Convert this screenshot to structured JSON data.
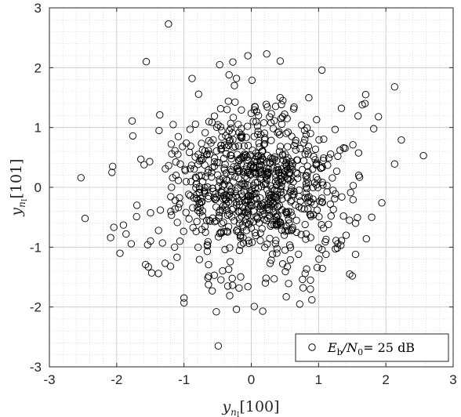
{
  "chart_data": {
    "type": "scatter",
    "title": "",
    "xlabel": {
      "main": "y",
      "sub": "n",
      "subsub": "I",
      "bracket": "[100]"
    },
    "ylabel": {
      "main": "y",
      "sub": "n",
      "subsub": "I",
      "bracket": "[101]"
    },
    "xlim": [
      -3,
      3
    ],
    "ylim": [
      -3,
      3
    ],
    "xticks": [
      "-3",
      "-2",
      "-1",
      "0",
      "1",
      "2",
      "3"
    ],
    "yticks": [
      "-3",
      "-2",
      "-1",
      "0",
      "1",
      "2",
      "3"
    ],
    "grid": true,
    "minor_grid": true,
    "legend_position": "bottom-right",
    "series": [
      {
        "name": "E_b/N_0= 25 dB",
        "legend": {
          "E": "E",
          "Esub": "b",
          "N": "/N",
          "Nsub": "0",
          "rest": "= 25 dB"
        },
        "marker": "circle-open",
        "color": "#000000",
        "x": [
          -1.23,
          -1.56,
          -0.47,
          0.23,
          -0.05,
          0.43,
          -0.33,
          -0.88,
          -0.22,
          0.01,
          -0.25,
          1.05,
          -1.77,
          -2.06,
          -2.07,
          -2.53,
          -1.37,
          -1.16,
          -1.36,
          -2.09,
          -2.47,
          -1.86,
          -1.57,
          -1.38,
          2.13,
          1.89,
          1.65,
          1.69,
          1.7,
          -1.48,
          -1.28,
          -1.2,
          -1.54,
          -1.32,
          -1.14,
          -1.06,
          -0.97,
          -0.85,
          -1.0,
          -1.0,
          -0.58,
          -0.55,
          -0.35,
          -0.05,
          0.28,
          0.38,
          0.58,
          0.72,
          0.77,
          0.8,
          0.98,
          1.11,
          1.25,
          1.5,
          1.79,
          -0.49,
          -0.22,
          -0.52,
          0.17,
          0.34,
          0.21,
          0.52,
          0.88,
          1.26,
          1.41,
          1.46,
          1.37,
          1.22,
          1.55,
          1.71,
          1.94,
          2.13,
          -1.09,
          -0.75,
          -0.45,
          -0.14,
          0.41,
          0.83,
          1.07,
          -0.34,
          0.47,
          0.63,
          -1.7,
          -1.9,
          -1.64,
          0.22,
          -0.32,
          0.9,
          1.55,
          -0.91,
          -0.63,
          0.03,
          0.52,
          0.66,
          0.97,
          1.34,
          1.82,
          -1.51,
          -1.76,
          -1.17,
          -0.81,
          -0.07,
          0.37,
          0.49,
          1.1,
          1.27
        ],
        "y": [
          2.73,
          2.1,
          2.05,
          2.23,
          2.2,
          2.11,
          1.88,
          1.82,
          1.82,
          1.79,
          1.7,
          1.96,
          1.11,
          0.35,
          0.25,
          0.16,
          0.95,
          1.05,
          1.21,
          -0.84,
          -0.52,
          -0.78,
          -1.29,
          -1.44,
          1.68,
          1.18,
          1.38,
          1.4,
          1.55,
          -1.43,
          -1.27,
          -1.32,
          -0.96,
          -0.93,
          -1.0,
          -0.9,
          -0.42,
          -0.18,
          -1.85,
          -1.93,
          -1.73,
          -1.47,
          -1.65,
          -1.66,
          -1.27,
          -1.1,
          -1.21,
          -1.95,
          -1.68,
          -1.44,
          -1.34,
          -1.12,
          -1.03,
          -1.48,
          -0.5,
          -2.65,
          -2.04,
          -2.08,
          -2.07,
          -1.53,
          -1.6,
          -1.83,
          -1.55,
          -0.89,
          -0.8,
          -0.55,
          -0.48,
          -0.37,
          -0.6,
          -0.86,
          -0.26,
          0.39,
          0.55,
          0.49,
          0.63,
          0.85,
          0.93,
          0.61,
          0.45,
          1.44,
          1.45,
          1.31,
          -0.3,
          -0.63,
          0.47,
          -1.52,
          -1.81,
          -1.88,
          -1.12,
          0.97,
          0.78,
          1.1,
          0.9,
          0.74,
          1.13,
          1.32,
          0.98,
          0.43,
          0.86,
          0.16,
          -0.12,
          -0.72,
          -0.56,
          -0.8,
          -0.91,
          0.27
        ]
      }
    ]
  }
}
